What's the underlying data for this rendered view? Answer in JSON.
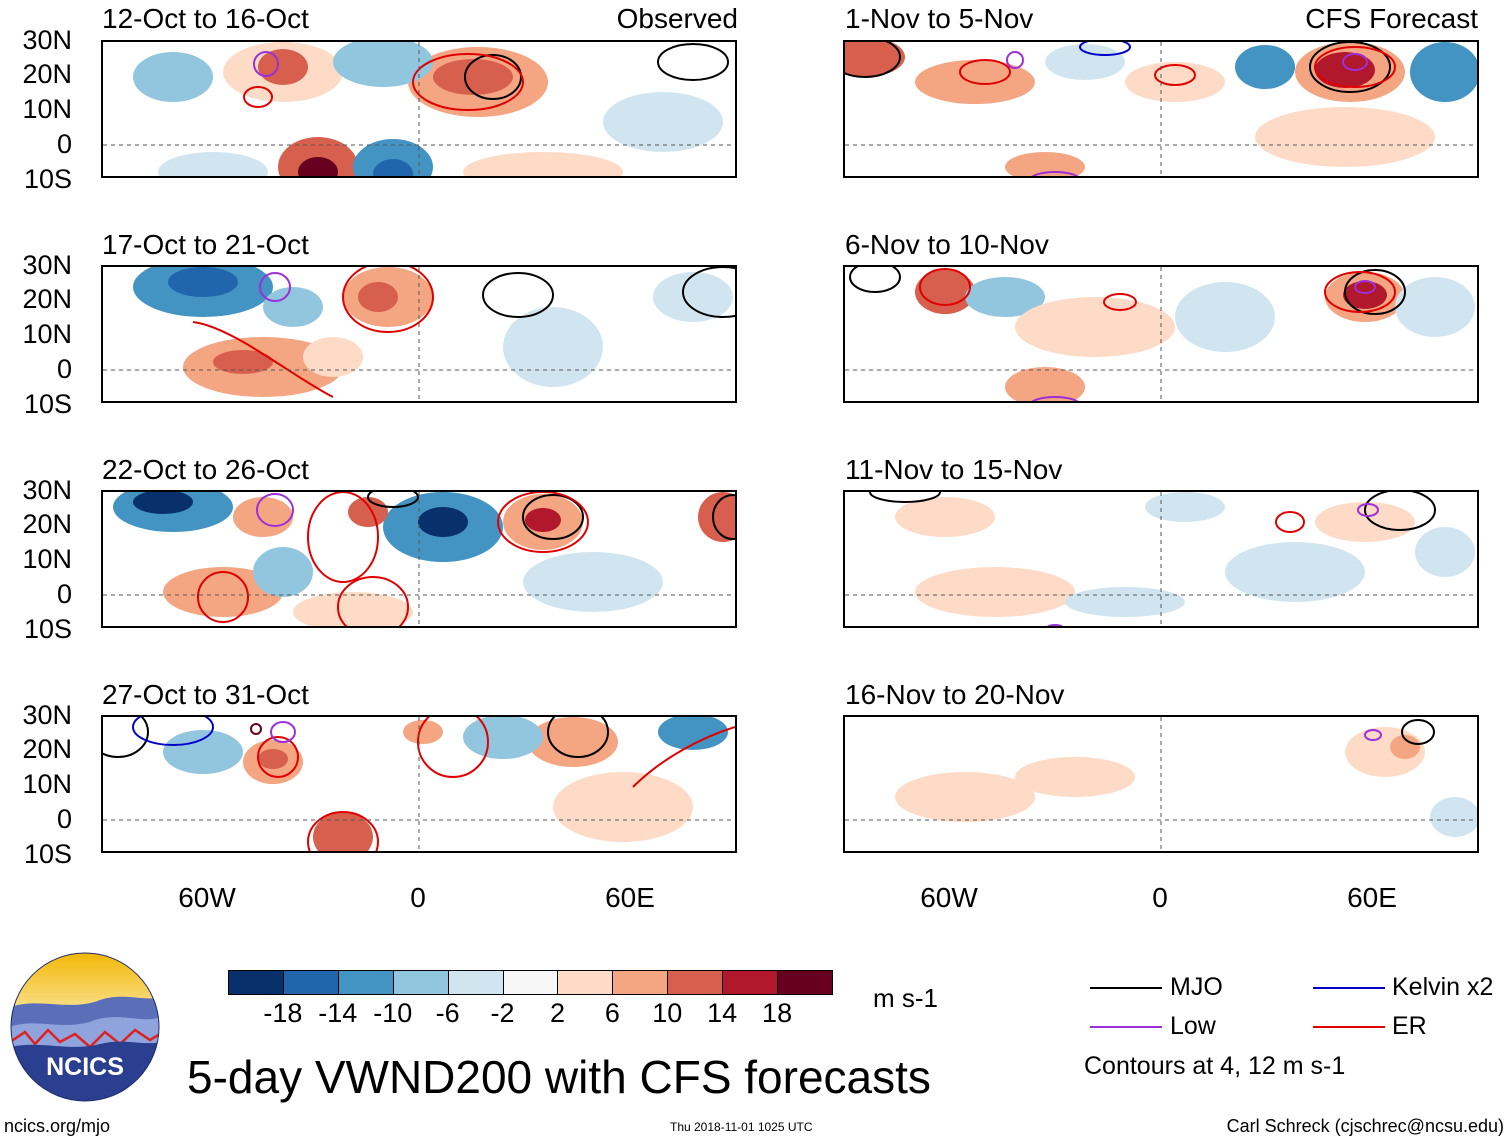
{
  "observed_label": "Observed",
  "forecast_label": "CFS Forecast",
  "lat_labels": [
    "30N",
    "20N",
    "10N",
    "0",
    "10S"
  ],
  "lon_labels": [
    "60W",
    "0",
    "60E"
  ],
  "panels_left": [
    {
      "title": "12-Oct to 16-Oct"
    },
    {
      "title": "17-Oct to 21-Oct"
    },
    {
      "title": "22-Oct to 26-Oct"
    },
    {
      "title": "27-Oct to 31-Oct"
    }
  ],
  "panels_right": [
    {
      "title": "1-Nov to 5-Nov"
    },
    {
      "title": "6-Nov to 10-Nov"
    },
    {
      "title": "11-Nov to 15-Nov"
    },
    {
      "title": "16-Nov to 20-Nov"
    }
  ],
  "colorbar": {
    "labels": [
      "-18",
      "-14",
      "-10",
      "-6",
      "-2",
      "2",
      "6",
      "10",
      "14",
      "18"
    ],
    "units": "m s-1",
    "colors": [
      "#08306b",
      "#2166ac",
      "#4393c3",
      "#92c5de",
      "#d1e5f0",
      "#f7f7f7",
      "#fddbc7",
      "#f4a582",
      "#d6604d",
      "#b2182b",
      "#67001f"
    ]
  },
  "legend": {
    "items": [
      {
        "label": "MJO",
        "color": "#000000"
      },
      {
        "label": "Kelvin x2",
        "color": "#0000cc"
      },
      {
        "label": "Low",
        "color": "#9b30d9"
      },
      {
        "label": "ER",
        "color": "#e00000"
      }
    ],
    "note": "Contours at 4, 12 m s-1"
  },
  "logo": {
    "text": "NCICS"
  },
  "main_title": "5-day VWND200 with CFS forecasts",
  "footer": {
    "url": "ncics.org/mjo",
    "timestamp": "Thu 2018-11-01 1025 UTC",
    "credit": "Carl Schreck (cjschrec@ncsu.edu)"
  }
}
